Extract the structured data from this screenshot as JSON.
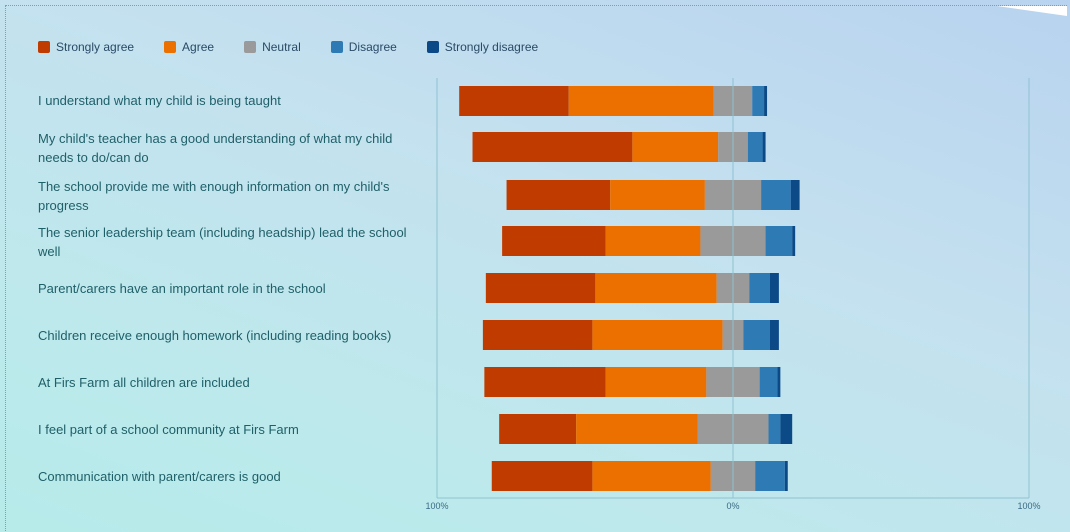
{
  "legend": {
    "strongly_agree": "Strongly agree",
    "agree": "Agree",
    "neutral": "Neutral",
    "disagree": "Disagree",
    "strongly_disagree": "Strongly disagree"
  },
  "axis": {
    "left_tick": "100%",
    "center_tick": "0%",
    "right_tick": "100%"
  },
  "chart_data": {
    "type": "bar",
    "orientation": "horizontal",
    "stacking": "diverging",
    "xlim": [
      -100,
      100
    ],
    "categories": [
      "I understand what my child is being taught",
      "My child's teacher has a good understanding of what my child needs to do/can do",
      "The school provide me with enough information on my child's progress",
      "The senior leadership team (including headship) lead the school well",
      "Parent/carers have an important role in the school",
      "Children receive enough homework (including reading books)",
      "At Firs Farm all children are included",
      "I feel part of a school community at Firs Farm",
      "Communication with parent/carers is good"
    ],
    "series": [
      {
        "name": "Strongly agree",
        "color": "#c03b00",
        "values": [
          37,
          54,
          35,
          35,
          37,
          37,
          41,
          26,
          34
        ]
      },
      {
        "name": "Agree",
        "color": "#ec7000",
        "values": [
          49,
          29,
          32,
          32,
          41,
          44,
          34,
          41,
          40
        ]
      },
      {
        "name": "Neutral",
        "color": "#9a9a9a",
        "values": [
          13,
          10,
          19,
          22,
          11,
          7,
          18,
          24,
          15
        ]
      },
      {
        "name": "Disagree",
        "color": "#2d7ab5",
        "values": [
          4,
          5,
          10,
          9,
          7,
          9,
          6,
          4,
          10
        ]
      },
      {
        "name": "Strongly disagree",
        "color": "#0b4a87",
        "values": [
          1,
          1,
          3,
          1,
          3,
          3,
          1,
          4,
          1
        ]
      }
    ]
  }
}
